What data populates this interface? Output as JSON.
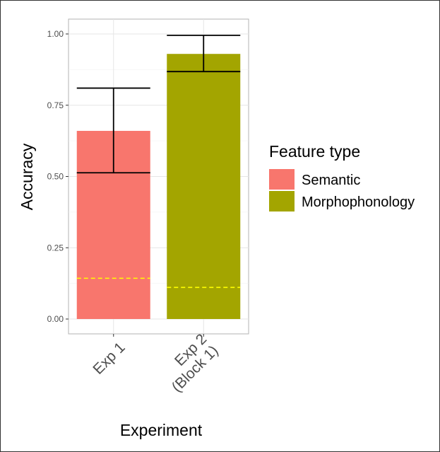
{
  "chart_data": {
    "type": "bar",
    "categories": [
      "Exp 1",
      "Exp 2\n(Block 1)"
    ],
    "series": [
      {
        "name": "Semantic",
        "color": "#F8766D",
        "values": [
          0.66,
          null
        ]
      },
      {
        "name": "Morphophonology",
        "color": "#A3A500",
        "values": [
          null,
          0.93
        ]
      }
    ],
    "error_bars": [
      {
        "lower": 0.513,
        "upper": 0.81
      },
      {
        "lower": 0.868,
        "upper": 0.995
      }
    ],
    "chance_levels": [
      0.143,
      0.111
    ],
    "chance_line_color": "#FFFF00",
    "xlabel": "Experiment",
    "ylabel": "Accuracy",
    "ylim": [
      0,
      1.05
    ],
    "yticks": [
      "0.00",
      "0.25",
      "0.50",
      "0.75",
      "1.00"
    ],
    "ytick_values": [
      0,
      0.25,
      0.5,
      0.75,
      1.0
    ],
    "grid": true,
    "legend": {
      "title": "Feature type",
      "placement": "right",
      "entries": [
        "Semantic",
        "Morphophonology"
      ]
    }
  }
}
